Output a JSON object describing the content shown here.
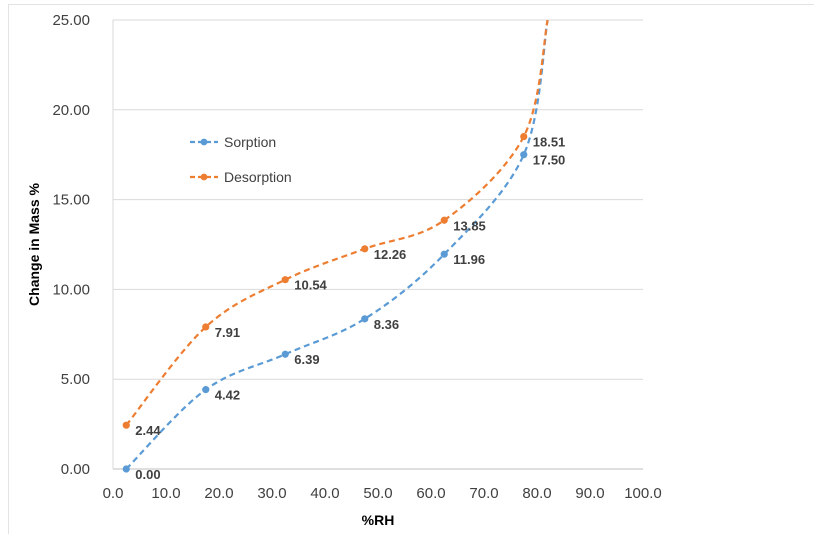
{
  "chart_data": {
    "type": "line",
    "xlabel": "%RH",
    "ylabel": "Change in Mass %",
    "xlim": [
      0,
      100
    ],
    "ylim": [
      0,
      25
    ],
    "x_ticks": [
      "0.0",
      "10.0",
      "20.0",
      "30.0",
      "40.0",
      "50.0",
      "60.0",
      "70.0",
      "80.0",
      "90.0",
      "100.0"
    ],
    "y_ticks": [
      "0.00",
      "5.00",
      "10.00",
      "15.00",
      "20.00",
      "25.00"
    ],
    "grid": "horizontal",
    "legend_position": "upper-left",
    "series": [
      {
        "name": "Sorption",
        "color": "#5B9BD5",
        "points": [
          {
            "x": 2.5,
            "y": 0.0,
            "label": "0.00"
          },
          {
            "x": 17.5,
            "y": 4.42,
            "label": "4.42"
          },
          {
            "x": 32.5,
            "y": 6.39,
            "label": "6.39"
          },
          {
            "x": 47.5,
            "y": 8.36,
            "label": "8.36"
          },
          {
            "x": 62.5,
            "y": 11.96,
            "label": "11.96"
          },
          {
            "x": 77.5,
            "y": 17.5,
            "label": "17.50"
          },
          {
            "x": 82,
            "y": 25,
            "label": ""
          }
        ]
      },
      {
        "name": "Desorption",
        "color": "#ED7D31",
        "points": [
          {
            "x": 2.5,
            "y": 2.44,
            "label": "2.44"
          },
          {
            "x": 17.5,
            "y": 7.91,
            "label": "7.91"
          },
          {
            "x": 32.5,
            "y": 10.54,
            "label": "10.54"
          },
          {
            "x": 47.5,
            "y": 12.26,
            "label": "12.26"
          },
          {
            "x": 62.5,
            "y": 13.85,
            "label": "13.85"
          },
          {
            "x": 77.5,
            "y": 18.51,
            "label": "18.51"
          },
          {
            "x": 82,
            "y": 25,
            "label": ""
          }
        ]
      }
    ]
  }
}
